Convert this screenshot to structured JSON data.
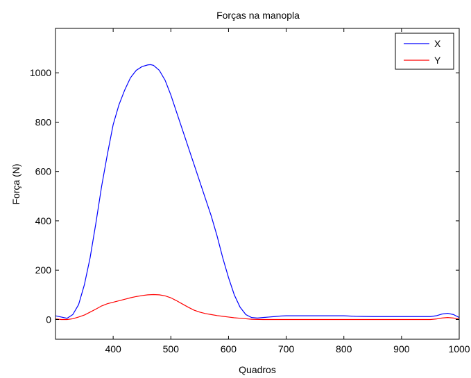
{
  "chart_data": {
    "type": "line",
    "title": "Forças na manopla",
    "xlabel": "Quadros",
    "ylabel": "Força (N)",
    "xlim": [
      300,
      1000
    ],
    "ylim": [
      -80,
      1180
    ],
    "xticks": [
      400,
      500,
      600,
      700,
      800,
      900,
      1000
    ],
    "yticks": [
      0,
      200,
      400,
      600,
      800,
      1000
    ],
    "grid": false,
    "legend_position": "top-right",
    "series": [
      {
        "name": "X",
        "color": "#0000ff",
        "x": [
          300,
          310,
          320,
          330,
          340,
          350,
          360,
          370,
          380,
          390,
          400,
          410,
          420,
          430,
          440,
          450,
          460,
          465,
          470,
          480,
          490,
          500,
          510,
          520,
          530,
          540,
          550,
          560,
          570,
          580,
          590,
          600,
          610,
          620,
          630,
          640,
          650,
          660,
          670,
          680,
          690,
          700,
          720,
          760,
          800,
          820,
          850,
          900,
          940,
          950,
          960,
          970,
          980,
          990,
          1000
        ],
        "values": [
          15,
          10,
          5,
          20,
          60,
          140,
          250,
          390,
          540,
          670,
          790,
          870,
          930,
          980,
          1010,
          1025,
          1032,
          1033,
          1030,
          1010,
          970,
          910,
          840,
          770,
          700,
          630,
          560,
          490,
          420,
          340,
          250,
          170,
          100,
          50,
          20,
          8,
          6,
          8,
          10,
          12,
          14,
          15,
          15,
          15,
          15,
          13,
          12,
          12,
          12,
          12,
          15,
          22,
          25,
          20,
          8
        ]
      },
      {
        "name": "Y",
        "color": "#ff0000",
        "x": [
          300,
          310,
          320,
          330,
          340,
          350,
          360,
          370,
          380,
          390,
          400,
          410,
          420,
          430,
          440,
          450,
          460,
          470,
          480,
          490,
          500,
          510,
          520,
          530,
          540,
          550,
          560,
          570,
          580,
          590,
          600,
          610,
          620,
          630,
          640,
          660,
          700,
          800,
          900,
          950,
          960,
          970,
          980,
          990,
          1000
        ],
        "values": [
          2,
          0,
          0,
          3,
          10,
          18,
          30,
          42,
          55,
          64,
          70,
          76,
          82,
          88,
          93,
          97,
          100,
          101,
          100,
          96,
          88,
          76,
          63,
          50,
          38,
          30,
          24,
          20,
          16,
          13,
          10,
          7,
          5,
          3,
          1,
          0,
          0,
          0,
          0,
          0,
          2,
          6,
          8,
          6,
          2
        ]
      }
    ]
  }
}
